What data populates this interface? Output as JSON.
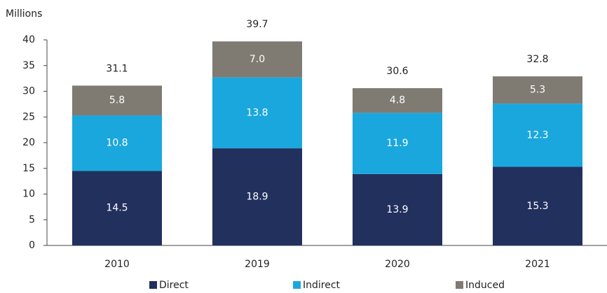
{
  "chart_data": {
    "type": "stacked_bar",
    "y_axis_label": "Millions",
    "categories": [
      "2010",
      "2019",
      "2020",
      "2021"
    ],
    "series": [
      {
        "name": "Direct",
        "color": "#22305e",
        "values": [
          14.5,
          18.9,
          13.9,
          15.3
        ]
      },
      {
        "name": "Indirect",
        "color": "#1aa7dd",
        "values": [
          10.8,
          13.8,
          11.9,
          12.3
        ]
      },
      {
        "name": "Induced",
        "color": "#7f7b72",
        "values": [
          5.8,
          7.0,
          4.8,
          5.3
        ],
        "value_labels": [
          "5.8",
          "7.0",
          "4.8",
          "5.3"
        ]
      }
    ],
    "totals": [
      31.1,
      39.7,
      30.6,
      32.8
    ],
    "ylim": [
      0,
      40
    ],
    "yticks": [
      0,
      5,
      10,
      15,
      20,
      25,
      30,
      35,
      40
    ],
    "legend": "bottom"
  }
}
